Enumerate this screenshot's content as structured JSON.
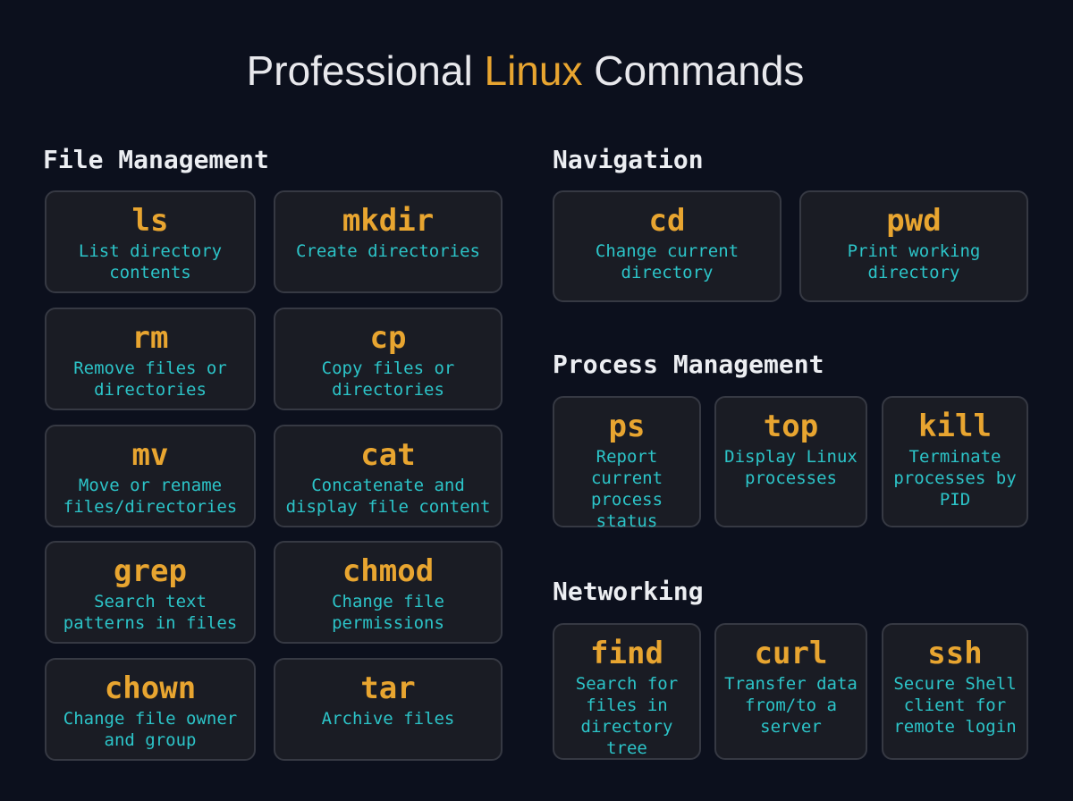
{
  "title": {
    "prefix": "Professional ",
    "accent": "Linux",
    "suffix": " Commands"
  },
  "colors": {
    "background": "#0c101d",
    "card": "#1a1c24",
    "command": "#e8a530",
    "description": "#2cc4c8"
  },
  "sections": [
    {
      "heading": "File Management",
      "commands": [
        {
          "cmd": "ls",
          "desc": "List directory contents"
        },
        {
          "cmd": "mkdir",
          "desc": "Create directories"
        },
        {
          "cmd": "rm",
          "desc": "Remove files or directories"
        },
        {
          "cmd": "cp",
          "desc": "Copy files or directories"
        },
        {
          "cmd": "mv",
          "desc": "Move or rename files/directories"
        },
        {
          "cmd": "cat",
          "desc": "Concatenate and display file content"
        },
        {
          "cmd": "grep",
          "desc": "Search text patterns in files"
        },
        {
          "cmd": "chmod",
          "desc": "Change file permissions"
        },
        {
          "cmd": "chown",
          "desc": "Change file owner and group"
        },
        {
          "cmd": "tar",
          "desc": "Archive files"
        }
      ]
    },
    {
      "heading": "Navigation",
      "commands": [
        {
          "cmd": "cd",
          "desc": "Change current directory"
        },
        {
          "cmd": "pwd",
          "desc": "Print working directory"
        }
      ]
    },
    {
      "heading": "Process Management",
      "commands": [
        {
          "cmd": "ps",
          "desc": "Report current process status"
        },
        {
          "cmd": "top",
          "desc": "Display Linux processes"
        },
        {
          "cmd": "kill",
          "desc": "Terminate processes by PID"
        }
      ]
    },
    {
      "heading": "Networking",
      "commands": [
        {
          "cmd": "find",
          "desc": "Search for files in directory tree"
        },
        {
          "cmd": "curl",
          "desc": "Transfer data from/to a server"
        },
        {
          "cmd": "ssh",
          "desc": "Secure Shell client for remote login"
        }
      ]
    }
  ]
}
